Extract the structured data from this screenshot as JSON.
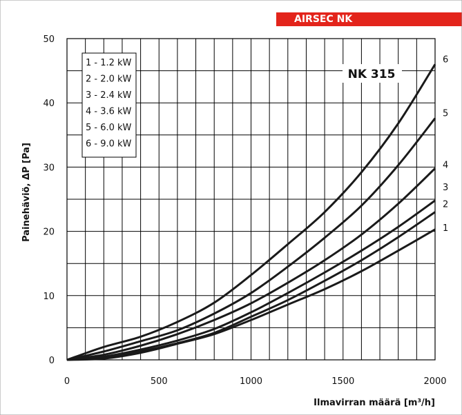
{
  "brand": {
    "label": "AIRSEC NK",
    "color": "#e3241b"
  },
  "chart_data": {
    "type": "line",
    "title": "NK 315",
    "xlabel": "Ilmavirran määrä [m³/h]",
    "ylabel": "Painehäviö, ΔP [Pa]",
    "xlim": [
      0,
      2000
    ],
    "ylim": [
      0,
      50
    ],
    "xticks": [
      0,
      500,
      1000,
      1500,
      2000
    ],
    "yticks": [
      0,
      10,
      20,
      30,
      40,
      50
    ],
    "grid": true,
    "legend_position": "top-left",
    "legend": [
      "1 - 1.2 kW",
      "2 - 2.0 kW",
      "3 - 2.4 kW",
      "4 - 3.6 kW",
      "5 - 6.0 kW",
      "6 - 9.0 kW"
    ],
    "line_color": "#1a1a1a",
    "series": [
      {
        "name": "1",
        "x": [
          0,
          200,
          400,
          600,
          800,
          1000,
          1200,
          1400,
          1600,
          1800,
          2000
        ],
        "y": [
          0,
          0.2,
          1.1,
          2.5,
          4.0,
          6.2,
          8.6,
          11.0,
          13.8,
          17.0,
          20.3
        ]
      },
      {
        "name": "2",
        "x": [
          0,
          200,
          400,
          600,
          800,
          1000,
          1200,
          1400,
          1600,
          1800,
          2000
        ],
        "y": [
          0,
          0.3,
          1.3,
          2.6,
          4.2,
          6.7,
          9.3,
          12.3,
          15.5,
          19.1,
          23.0
        ]
      },
      {
        "name": "3",
        "x": [
          0,
          200,
          400,
          600,
          800,
          1000,
          1200,
          1400,
          1600,
          1800,
          2000
        ],
        "y": [
          0,
          0.5,
          1.6,
          3.0,
          4.8,
          7.4,
          10.4,
          13.6,
          17.0,
          20.7,
          24.8
        ]
      },
      {
        "name": "4",
        "x": [
          0,
          200,
          400,
          600,
          800,
          1000,
          1200,
          1400,
          1600,
          1800,
          2000
        ],
        "y": [
          0,
          0.8,
          2.2,
          4.0,
          6.2,
          8.8,
          12.0,
          15.5,
          19.5,
          24.3,
          29.8
        ]
      },
      {
        "name": "5",
        "x": [
          0,
          200,
          400,
          600,
          800,
          1000,
          1200,
          1400,
          1600,
          1800,
          2000
        ],
        "y": [
          0,
          1.3,
          2.9,
          4.6,
          7.2,
          10.4,
          14.5,
          19.0,
          24.0,
          30.3,
          37.6
        ]
      },
      {
        "name": "6",
        "x": [
          0,
          200,
          400,
          600,
          800,
          1000,
          1200,
          1400,
          1600,
          1800,
          2000
        ],
        "y": [
          0,
          2.0,
          3.6,
          5.9,
          8.9,
          13.2,
          18.0,
          23.0,
          29.2,
          36.8,
          46.0
        ]
      }
    ]
  }
}
